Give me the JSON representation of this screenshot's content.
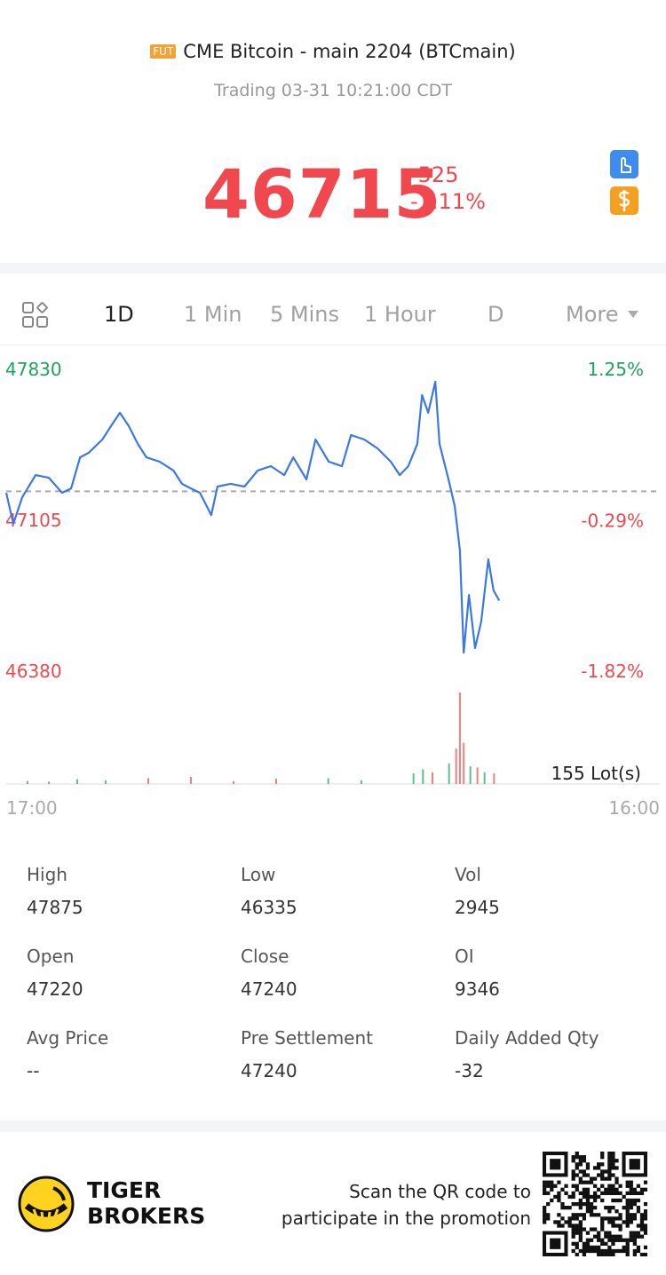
{
  "header": {
    "badge": "FUT",
    "title": "CME Bitcoin - main 2204 (BTCmain)",
    "subtitle": "Trading 03-31 10:21:00 CDT"
  },
  "quote": {
    "price": 46715,
    "change": -525,
    "change_pct": "-1.11%"
  },
  "tabs": [
    "1D",
    "1 Min",
    "5 Mins",
    "1 Hour",
    "D",
    "More"
  ],
  "chart_data": {
    "type": "line",
    "x": [
      "17:00",
      "17:15",
      "17:34",
      "18:02",
      "18:30",
      "18:58",
      "19:17",
      "19:36",
      "19:54",
      "20:23",
      "20:41",
      "21:00",
      "21:19",
      "21:38",
      "21:56",
      "22:24",
      "22:53",
      "23:11",
      "23:30",
      "23:49",
      "00:13",
      "00:26",
      "00:54",
      "01:23",
      "01:51",
      "02:19",
      "02:47",
      "03:06",
      "03:34",
      "03:53",
      "04:21",
      "04:49",
      "05:08",
      "05:36",
      "06:04",
      "06:32",
      "06:51",
      "07:09",
      "07:28",
      "07:38",
      "07:51",
      "08:06",
      "08:15",
      "08:34",
      "08:47",
      "08:58",
      "09:06",
      "09:17",
      "09:30",
      "09:43",
      "09:58",
      "10:09",
      "10:21"
    ],
    "series": [
      {
        "name": "BTCmain",
        "color": "#3b78e7",
        "values": [
          47233,
          47084,
          47212,
          47318,
          47305,
          47233,
          47254,
          47403,
          47425,
          47489,
          47553,
          47617,
          47553,
          47467,
          47403,
          47382,
          47340,
          47276,
          47254,
          47233,
          47126,
          47263,
          47276,
          47263,
          47340,
          47361,
          47318,
          47403,
          47297,
          47489,
          47382,
          47361,
          47510,
          47489,
          47446,
          47382,
          47318,
          47361,
          47467,
          47702,
          47617,
          47766,
          47467,
          47297,
          47169,
          46956,
          46465,
          46742,
          46487,
          46614,
          46913,
          46764,
          46715
        ]
      }
    ],
    "ylim": [
      46380,
      47830
    ],
    "yticks": [
      46380,
      47105,
      47830
    ],
    "y2lim": [
      -1.82,
      1.25
    ],
    "y2ticks": [
      {
        "value": -1.82,
        "label": "-1.82%"
      },
      {
        "value": -0.29,
        "label": "-0.29%"
      },
      {
        "value": 1.25,
        "label": "1.25%"
      }
    ],
    "xlim": [
      "17:00",
      "16:00"
    ],
    "xticks": [
      "17:00",
      "16:00"
    ],
    "up_color": "#1fa35c",
    "down_color": "#f0484e",
    "volume": {
      "x": [
        "17:45",
        "18:30",
        "19:30",
        "20:30",
        "22:00",
        "23:30",
        "01:00",
        "02:30",
        "04:20",
        "05:30",
        "07:20",
        "07:40",
        "08:00",
        "08:35",
        "08:50",
        "08:58",
        "09:06",
        "09:20",
        "09:35",
        "09:50",
        "10:10"
      ],
      "values": [
        5,
        4,
        8,
        6,
        10,
        12,
        5,
        9,
        10,
        6,
        18,
        25,
        20,
        35,
        60,
        155,
        70,
        30,
        28,
        20,
        18
      ],
      "colors": [
        "#5cc08a",
        "#f08080",
        "#5cc08a",
        "#5cc08a",
        "#f08080",
        "#f08080",
        "#f08080",
        "#f08080",
        "#5cc08a",
        "#5cc08a",
        "#5cc08a",
        "#5cc08a",
        "#f08080",
        "#5cc08a",
        "#f08080",
        "#f08080",
        "#f08080",
        "#5cc08a",
        "#f08080",
        "#5cc08a",
        "#f08080"
      ],
      "max": {
        "value": 155,
        "label": "155 Lot(s)"
      }
    }
  },
  "stats": [
    [
      {
        "label": "High",
        "value": 47875
      },
      {
        "label": "Low",
        "value": 46335
      },
      {
        "label": "Vol",
        "value": 2945
      }
    ],
    [
      {
        "label": "Open",
        "value": 47220
      },
      {
        "label": "Close",
        "value": 47240
      },
      {
        "label": "OI",
        "value": 9346
      }
    ],
    [
      {
        "label": "Avg Price",
        "value": "--"
      },
      {
        "label": "Pre Settlement",
        "value": 47240
      },
      {
        "label": "Daily Added Qty",
        "value": -32
      }
    ]
  ],
  "footer": {
    "brand": [
      "TIGER",
      "BROKERS"
    ],
    "promo": [
      "Scan the QR code to",
      "participate in the promotion"
    ]
  }
}
